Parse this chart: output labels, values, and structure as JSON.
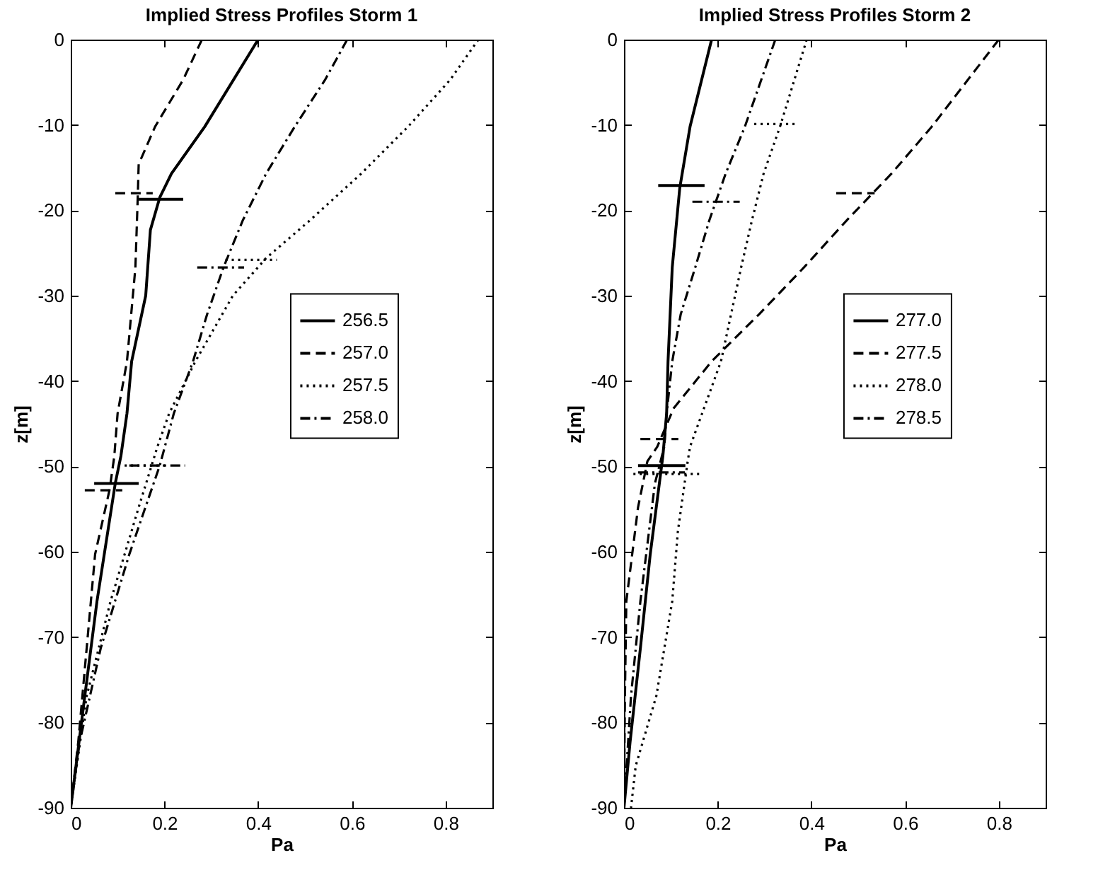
{
  "chart_data": [
    {
      "type": "line",
      "title": "Implied Stress Profiles Storm 1",
      "xlabel": "Pa",
      "ylabel": "z[m]",
      "xlim": [
        0,
        0.9
      ],
      "xticks": [
        0,
        0.2,
        0.4,
        0.6,
        0.8
      ],
      "ylim": [
        -90,
        0
      ],
      "yticks": [
        -90,
        -80,
        -70,
        -60,
        -50,
        -40,
        -30,
        -20,
        -10,
        0
      ],
      "grid": false,
      "legend": "right",
      "series": [
        {
          "name": "256.5",
          "color": "#000000",
          "line_style": "solid",
          "x": [
            0.4,
            0.286,
            0.215,
            0.19,
            0.17,
            0.16,
            0.13,
            0.12,
            0.107,
            0.095,
            0.056,
            0.03,
            0
          ],
          "values": [
            0,
            -10.2,
            -15.7,
            -18.5,
            -22.3,
            -30,
            -37.7,
            -43.8,
            -48.8,
            -52,
            -65.8,
            -76.9,
            -90
          ]
        },
        {
          "name": "257.0",
          "color": "#000000",
          "line_style": "dashed",
          "x": [
            0.28,
            0.24,
            0.18,
            0.145,
            0.143,
            0.138,
            0.12,
            0.1,
            0.093,
            0.083,
            0.052,
            0.034,
            0.016,
            0
          ],
          "values": [
            0,
            -4.7,
            -10.2,
            -14.6,
            -18.5,
            -26.7,
            -37.7,
            -43.8,
            -48.8,
            -52.7,
            -60.3,
            -71.3,
            -82.3,
            -90
          ]
        },
        {
          "name": "257.5",
          "color": "#000000",
          "line_style": "dotted",
          "x": [
            0.87,
            0.81,
            0.72,
            0.62,
            0.51,
            0.417,
            0.346,
            0.266,
            0.21,
            0.185,
            0.145,
            0.085,
            0.034,
            0
          ],
          "values": [
            0,
            -4.7,
            -10.2,
            -15.7,
            -21.2,
            -25.6,
            -30,
            -37.7,
            -43.8,
            -47.7,
            -54.8,
            -65.8,
            -76.9,
            -90
          ]
        },
        {
          "name": "258.0",
          "color": "#000000",
          "line_style": "dashdot",
          "x": [
            0.59,
            0.543,
            0.478,
            0.417,
            0.367,
            0.326,
            0.291,
            0.261,
            0.22,
            0.19,
            0.125,
            0.064,
            0.019,
            0
          ],
          "values": [
            0,
            -4.7,
            -10.2,
            -15.7,
            -21.2,
            -26.7,
            -32.2,
            -37.7,
            -43.8,
            -49.9,
            -60.3,
            -71.3,
            -82.3,
            -90
          ]
        },
        {
          "color": "#000000",
          "line_style": "solid",
          "x": [
            0.143,
            0.24
          ],
          "values": [
            -18.7,
            -18.7
          ]
        },
        {
          "color": "#000000",
          "line_style": "solid",
          "x": [
            0.05,
            0.145
          ],
          "values": [
            -52,
            -52
          ]
        },
        {
          "color": "#000000",
          "line_style": "dashed",
          "x": [
            0.095,
            0.175
          ],
          "values": [
            -18,
            -18
          ]
        },
        {
          "color": "#000000",
          "line_style": "dashed",
          "x": [
            0.03,
            0.11
          ],
          "values": [
            -52.8,
            -52.8
          ]
        },
        {
          "color": "#000000",
          "line_style": "dotted",
          "x": [
            0.33,
            0.44
          ],
          "values": [
            -25.8,
            -25.8
          ]
        },
        {
          "color": "#000000",
          "line_style": "dotted",
          "x": [
            0.115,
            0.205
          ],
          "values": [
            -49.9,
            -49.9
          ]
        },
        {
          "color": "#000000",
          "line_style": "dashdot",
          "x": [
            0.27,
            0.37
          ],
          "values": [
            -26.7,
            -26.7
          ]
        },
        {
          "color": "#000000",
          "line_style": "dashdot",
          "x": [
            0.125,
            0.244
          ],
          "values": [
            -49.9,
            -49.9
          ]
        }
      ]
    },
    {
      "type": "line",
      "title": "Implied Stress Profiles Storm 2",
      "xlabel": "Pa",
      "ylabel": "z[m]",
      "xlim": [
        0,
        0.9
      ],
      "xticks": [
        0,
        0.2,
        0.4,
        0.6,
        0.8
      ],
      "ylim": [
        -90,
        0
      ],
      "yticks": [
        -90,
        -80,
        -70,
        -60,
        -50,
        -40,
        -30,
        -20,
        -10,
        0
      ],
      "grid": false,
      "legend": "right",
      "series": [
        {
          "name": "277.0",
          "color": "#000000",
          "line_style": "solid",
          "x": [
            0.187,
            0.141,
            0.119,
            0.103,
            0.094,
            0.091,
            0.083,
            0.056,
            0.035,
            0.013,
            0
          ],
          "values": [
            0,
            -10.2,
            -17.4,
            -26.7,
            -37.7,
            -43.8,
            -48.8,
            -60.3,
            -71.3,
            -82.3,
            -90
          ]
        },
        {
          "name": "277.5",
          "color": "#000000",
          "line_style": "dashed",
          "x": [
            0.8,
            0.657,
            0.571,
            0.475,
            0.384,
            0.288,
            0.187,
            0.106,
            0.071,
            0.05,
            0.03,
            0.005,
            0.002,
            0
          ],
          "values": [
            0,
            -10.2,
            -15.7,
            -21.2,
            -26.7,
            -32.2,
            -37.7,
            -43.2,
            -47.7,
            -49.4,
            -54.8,
            -65.8,
            -76.9,
            -90
          ]
        },
        {
          "name": "278.0",
          "color": "#000000",
          "line_style": "dotted",
          "x": [
            0.39,
            0.333,
            0.298,
            0.273,
            0.25,
            0.207,
            0.141,
            0.136,
            0.115,
            0.103,
            0.069,
            0.025,
            0.015
          ],
          "values": [
            0,
            -10.2,
            -15.7,
            -21.2,
            -26.7,
            -37.7,
            -47.7,
            -49.4,
            -57.6,
            -65.8,
            -76.9,
            -85.1,
            -90
          ]
        },
        {
          "name": "278.5",
          "color": "#000000",
          "line_style": "dashdot",
          "x": [
            0.323,
            0.258,
            0.217,
            0.182,
            0.152,
            0.121,
            0.103,
            0.091,
            0.086,
            0.066,
            0.035,
            0.015,
            0
          ],
          "values": [
            0,
            -10.2,
            -15.7,
            -21.2,
            -26.7,
            -32.2,
            -37.7,
            -43.8,
            -47.7,
            -52,
            -65.8,
            -76.9,
            -90
          ]
        },
        {
          "color": "#000000",
          "line_style": "solid",
          "x": [
            0.073,
            0.172
          ],
          "values": [
            -17.1,
            -17.1
          ]
        },
        {
          "color": "#000000",
          "line_style": "solid",
          "x": [
            0.03,
            0.131
          ],
          "values": [
            -49.9,
            -49.9
          ]
        },
        {
          "color": "#000000",
          "line_style": "dashed",
          "x": [
            0.453,
            0.535
          ],
          "values": [
            -18,
            -18
          ]
        },
        {
          "color": "#000000",
          "line_style": "dashed",
          "x": [
            0.035,
            0.116
          ],
          "values": [
            -46.8,
            -46.8
          ]
        },
        {
          "color": "#000000",
          "line_style": "dotted",
          "x": [
            0.278,
            0.369
          ],
          "values": [
            -9.9,
            -9.9
          ]
        },
        {
          "color": "#000000",
          "line_style": "dotted",
          "x": [
            0.02,
            0.167
          ],
          "values": [
            -50.9,
            -50.9
          ]
        },
        {
          "color": "#000000",
          "line_style": "dashdot",
          "x": [
            0.146,
            0.247
          ],
          "values": [
            -19,
            -19
          ]
        },
        {
          "color": "#000000",
          "line_style": "dashdot",
          "x": [
            0.03,
            0.13
          ],
          "values": [
            -50.7,
            -50.7
          ]
        }
      ]
    }
  ]
}
